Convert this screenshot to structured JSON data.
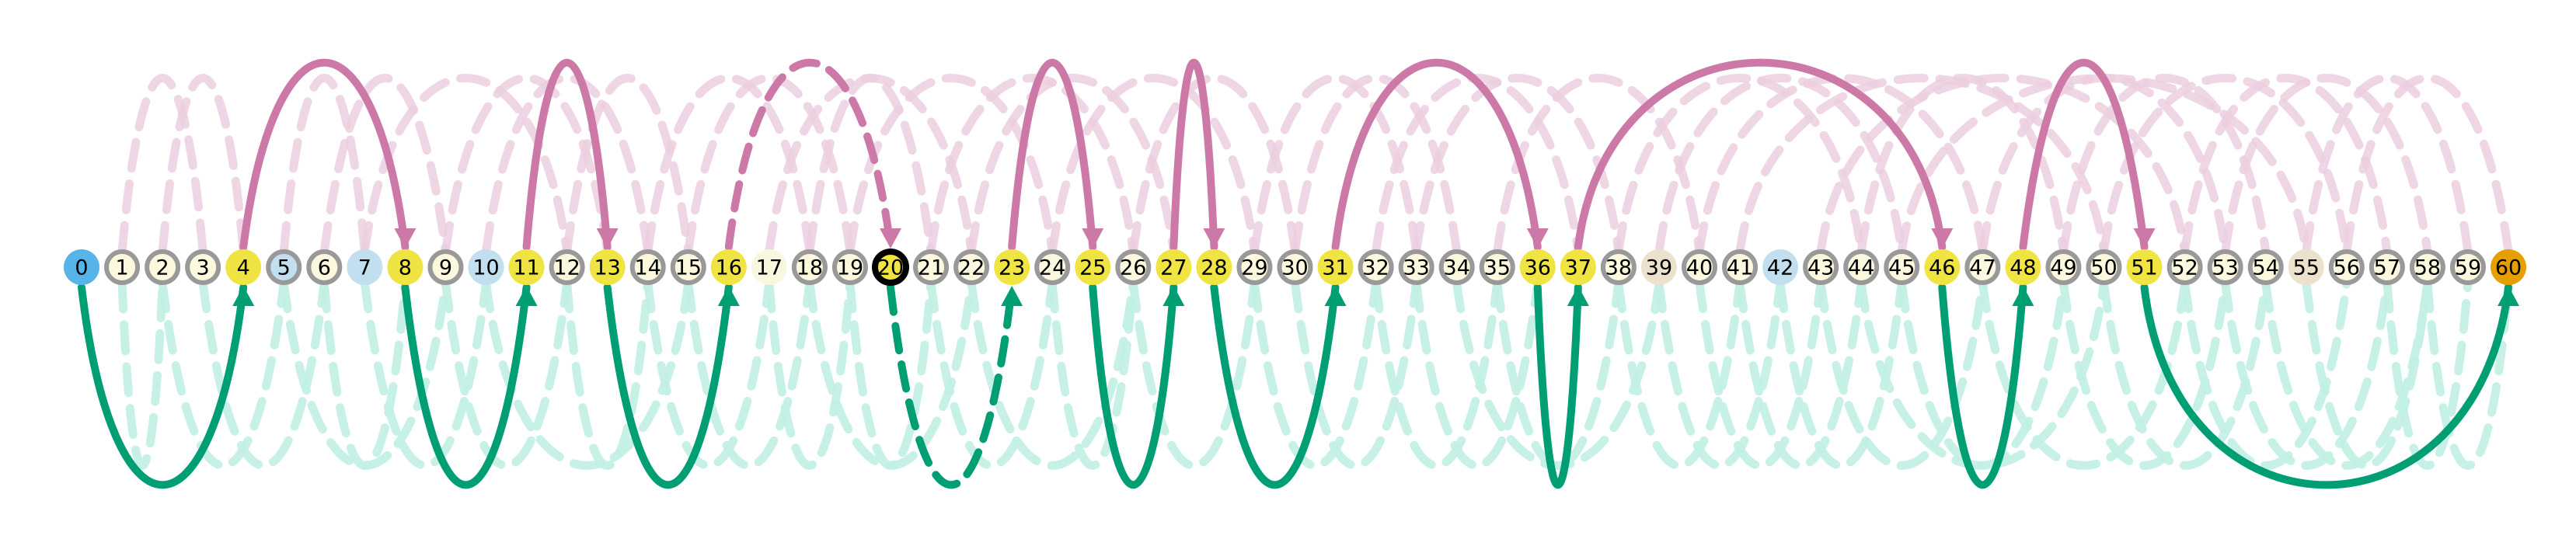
{
  "colors": {
    "start": "#56b4e9",
    "goal": "#e69f00",
    "visited": "#f0e442",
    "default_fill": "#fcf8de",
    "ring": "#999999",
    "blue": "#c2dff0",
    "beige": "#ece1cc",
    "plain": "#f8f8e0",
    "pink": "#cc79a7",
    "green": "#009e73",
    "faded_pink": "#eccfdf",
    "faded_green": "#c1f0e3",
    "current_ring": "#000000"
  },
  "nodes": [
    {
      "label": "0",
      "kind": "start"
    },
    {
      "label": "1",
      "kind": "default"
    },
    {
      "label": "2",
      "kind": "default"
    },
    {
      "label": "3",
      "kind": "default"
    },
    {
      "label": "4",
      "kind": "visited"
    },
    {
      "label": "5",
      "kind": "blue_ring"
    },
    {
      "label": "6",
      "kind": "default"
    },
    {
      "label": "7",
      "kind": "blue"
    },
    {
      "label": "8",
      "kind": "visited"
    },
    {
      "label": "9",
      "kind": "default"
    },
    {
      "label": "10",
      "kind": "blue"
    },
    {
      "label": "11",
      "kind": "visited"
    },
    {
      "label": "12",
      "kind": "default"
    },
    {
      "label": "13",
      "kind": "visited"
    },
    {
      "label": "14",
      "kind": "default"
    },
    {
      "label": "15",
      "kind": "default"
    },
    {
      "label": "16",
      "kind": "visited"
    },
    {
      "label": "17",
      "kind": "plain"
    },
    {
      "label": "18",
      "kind": "default"
    },
    {
      "label": "19",
      "kind": "default"
    },
    {
      "label": "20",
      "kind": "current"
    },
    {
      "label": "21",
      "kind": "default"
    },
    {
      "label": "22",
      "kind": "default"
    },
    {
      "label": "23",
      "kind": "visited"
    },
    {
      "label": "24",
      "kind": "default"
    },
    {
      "label": "25",
      "kind": "visited"
    },
    {
      "label": "26",
      "kind": "default"
    },
    {
      "label": "27",
      "kind": "visited"
    },
    {
      "label": "28",
      "kind": "visited"
    },
    {
      "label": "29",
      "kind": "default"
    },
    {
      "label": "30",
      "kind": "default"
    },
    {
      "label": "31",
      "kind": "visited"
    },
    {
      "label": "32",
      "kind": "default"
    },
    {
      "label": "33",
      "kind": "default"
    },
    {
      "label": "34",
      "kind": "default"
    },
    {
      "label": "35",
      "kind": "default"
    },
    {
      "label": "36",
      "kind": "visited"
    },
    {
      "label": "37",
      "kind": "visited"
    },
    {
      "label": "38",
      "kind": "default"
    },
    {
      "label": "39",
      "kind": "beige"
    },
    {
      "label": "40",
      "kind": "default"
    },
    {
      "label": "41",
      "kind": "default"
    },
    {
      "label": "42",
      "kind": "blue"
    },
    {
      "label": "43",
      "kind": "default"
    },
    {
      "label": "44",
      "kind": "default"
    },
    {
      "label": "45",
      "kind": "default"
    },
    {
      "label": "46",
      "kind": "visited"
    },
    {
      "label": "47",
      "kind": "default"
    },
    {
      "label": "48",
      "kind": "visited"
    },
    {
      "label": "49",
      "kind": "default"
    },
    {
      "label": "50",
      "kind": "default"
    },
    {
      "label": "51",
      "kind": "visited"
    },
    {
      "label": "52",
      "kind": "default"
    },
    {
      "label": "53",
      "kind": "default"
    },
    {
      "label": "54",
      "kind": "default"
    },
    {
      "label": "55",
      "kind": "beige"
    },
    {
      "label": "56",
      "kind": "default"
    },
    {
      "label": "57",
      "kind": "default"
    },
    {
      "label": "58",
      "kind": "default"
    },
    {
      "label": "59",
      "kind": "default"
    },
    {
      "label": "60",
      "kind": "goal"
    }
  ],
  "jumps_up": [
    {
      "from": 4,
      "to": 8,
      "style": "solid"
    },
    {
      "from": 11,
      "to": 13,
      "style": "solid"
    },
    {
      "from": 16,
      "to": 20,
      "style": "dashed"
    },
    {
      "from": 23,
      "to": 25,
      "style": "solid"
    },
    {
      "from": 27,
      "to": 28,
      "style": "solid"
    },
    {
      "from": 31,
      "to": 36,
      "style": "solid"
    },
    {
      "from": 37,
      "to": 46,
      "style": "solid"
    },
    {
      "from": 48,
      "to": 51,
      "style": "solid"
    }
  ],
  "jumps_down": [
    {
      "from": 0,
      "to": 4,
      "style": "solid"
    },
    {
      "from": 8,
      "to": 11,
      "style": "solid"
    },
    {
      "from": 13,
      "to": 16,
      "style": "solid"
    },
    {
      "from": 20,
      "to": 23,
      "style": "dashed"
    },
    {
      "from": 25,
      "to": 27,
      "style": "solid"
    },
    {
      "from": 28,
      "to": 31,
      "style": "solid"
    },
    {
      "from": 36,
      "to": 37,
      "style": "solid"
    },
    {
      "from": 46,
      "to": 48,
      "style": "solid"
    },
    {
      "from": 51,
      "to": 60,
      "style": "solid"
    }
  ],
  "faded_up": [
    [
      1,
      3
    ],
    [
      2,
      4
    ],
    [
      5,
      7
    ],
    [
      6,
      9
    ],
    [
      7,
      12
    ],
    [
      9,
      13
    ],
    [
      10,
      14
    ],
    [
      12,
      15
    ],
    [
      14,
      18
    ],
    [
      15,
      19
    ],
    [
      17,
      22
    ],
    [
      18,
      21
    ],
    [
      19,
      24
    ],
    [
      21,
      26
    ],
    [
      22,
      27
    ],
    [
      24,
      29
    ],
    [
      26,
      30
    ],
    [
      29,
      33
    ],
    [
      30,
      34
    ],
    [
      32,
      37
    ],
    [
      33,
      38
    ],
    [
      35,
      40
    ],
    [
      38,
      44
    ],
    [
      39,
      45
    ],
    [
      40,
      47
    ],
    [
      41,
      50
    ],
    [
      43,
      52
    ],
    [
      44,
      49
    ],
    [
      45,
      55
    ],
    [
      47,
      53
    ],
    [
      49,
      54
    ],
    [
      50,
      56
    ],
    [
      52,
      57
    ],
    [
      53,
      58
    ],
    [
      55,
      59
    ],
    [
      56,
      60
    ]
  ],
  "faded_down": [
    [
      1,
      2
    ],
    [
      2,
      5
    ],
    [
      3,
      6
    ],
    [
      5,
      9
    ],
    [
      6,
      8
    ],
    [
      7,
      10
    ],
    [
      9,
      12
    ],
    [
      10,
      15
    ],
    [
      12,
      14
    ],
    [
      14,
      17
    ],
    [
      15,
      18
    ],
    [
      17,
      19
    ],
    [
      18,
      22
    ],
    [
      19,
      21
    ],
    [
      21,
      24
    ],
    [
      22,
      26
    ],
    [
      24,
      26
    ],
    [
      26,
      29
    ],
    [
      29,
      32
    ],
    [
      30,
      33
    ],
    [
      32,
      35
    ],
    [
      33,
      36
    ],
    [
      34,
      39
    ],
    [
      35,
      38
    ],
    [
      38,
      41
    ],
    [
      39,
      42
    ],
    [
      40,
      43
    ],
    [
      41,
      44
    ],
    [
      42,
      45
    ],
    [
      43,
      47
    ],
    [
      44,
      50
    ],
    [
      45,
      49
    ],
    [
      47,
      52
    ],
    [
      49,
      53
    ],
    [
      50,
      54
    ],
    [
      52,
      56
    ],
    [
      53,
      57
    ],
    [
      54,
      58
    ],
    [
      55,
      58
    ],
    [
      57,
      59
    ],
    [
      58,
      60
    ]
  ]
}
